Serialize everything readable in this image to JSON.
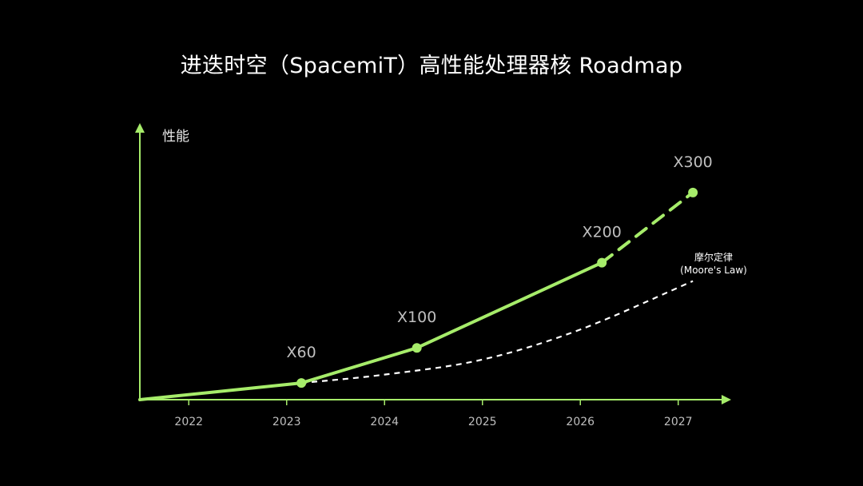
{
  "title": "进迭时空（SpacemiT）高性能处理器核 Roadmap",
  "colors": {
    "background": "#000000",
    "accent": "#a6ec6a",
    "axis": "#a6ec6a",
    "moore": "#ffffff",
    "label": "#bfbfbf"
  },
  "chart_data": {
    "type": "line",
    "ylabel": "性能",
    "x_ticks": [
      "2022",
      "2023",
      "2024",
      "2025",
      "2026",
      "2027"
    ],
    "series": [
      {
        "name": "SpacemiT",
        "style": "solid-then-dashed",
        "points": [
          {
            "x": 2021.5,
            "y": 0,
            "label": ""
          },
          {
            "x": 2023.15,
            "y": 10,
            "label": "X60"
          },
          {
            "x": 2024.33,
            "y": 31,
            "label": "X100"
          },
          {
            "x": 2026.22,
            "y": 82,
            "label": "X200"
          },
          {
            "x": 2027.15,
            "y": 124,
            "label": "X300"
          }
        ],
        "dashed_from_label": "X200"
      },
      {
        "name": "摩尔定律\n(Moore's Law)",
        "name_line1": "摩尔定律",
        "name_line2": "(Moore's Law)",
        "style": "dashed",
        "points": [
          {
            "x": 2023.15,
            "y": 10
          },
          {
            "x": 2024.0,
            "y": 15
          },
          {
            "x": 2025.0,
            "y": 24
          },
          {
            "x": 2026.0,
            "y": 42
          },
          {
            "x": 2027.15,
            "y": 71
          }
        ]
      }
    ],
    "xlim": [
      2021.5,
      2027.5
    ],
    "ylim": [
      0,
      150
    ]
  }
}
